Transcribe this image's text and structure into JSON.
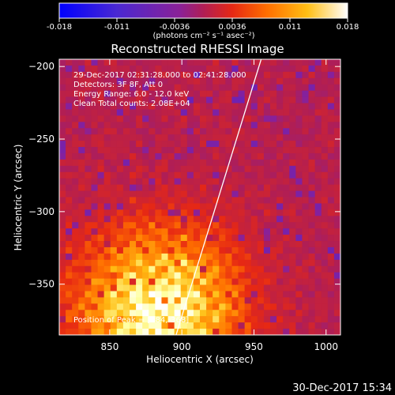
{
  "colorbar": {
    "ticks": [
      "-0.018",
      "-0.011",
      "-0.0036",
      "0.0036",
      "0.011",
      "0.018"
    ],
    "units": "(photons cm⁻² s⁻¹ asec⁻²)"
  },
  "annotations": {
    "time_range": "29-Dec-2017 02:31:28.000 to 02:41:28.000",
    "detectors": "Detectors: 3F 8F, Att 0",
    "energy": "Energy Range: 6.0 - 12.0 keV",
    "clean": "Clean     Total counts: 2.08E+04",
    "peak": "Position of Peak = [884,-368]"
  },
  "footer": {
    "timestamp": "30-Dec-2017 15:34"
  },
  "chart_data": {
    "type": "heatmap",
    "title": "Reconstructed RHESSI Image",
    "xlabel": "Heliocentric X (arcsec)",
    "ylabel": "Heliocentric Y (arcsec)",
    "xlim": [
      815,
      1010
    ],
    "ylim": [
      -385,
      -195
    ],
    "x_ticks": [
      850,
      900,
      950,
      1000
    ],
    "y_ticks": [
      -200,
      -250,
      -300,
      -350
    ],
    "x_tick_labels": [
      "850",
      "900",
      "950",
      "1000"
    ],
    "y_tick_labels": [
      "−200",
      "−250",
      "−300",
      "−350"
    ],
    "color_range": [
      -0.018,
      0.018
    ],
    "colormap": [
      "#0000ff",
      "#5a23c8",
      "#8b2196",
      "#b01e55",
      "#e62814",
      "#ff6e00",
      "#ffbe14",
      "#ffffa0",
      "#ffffff"
    ],
    "peak": [
      884,
      -368
    ],
    "limb_line": [
      [
        896,
        -385
      ],
      [
        955,
        -195
      ]
    ]
  }
}
